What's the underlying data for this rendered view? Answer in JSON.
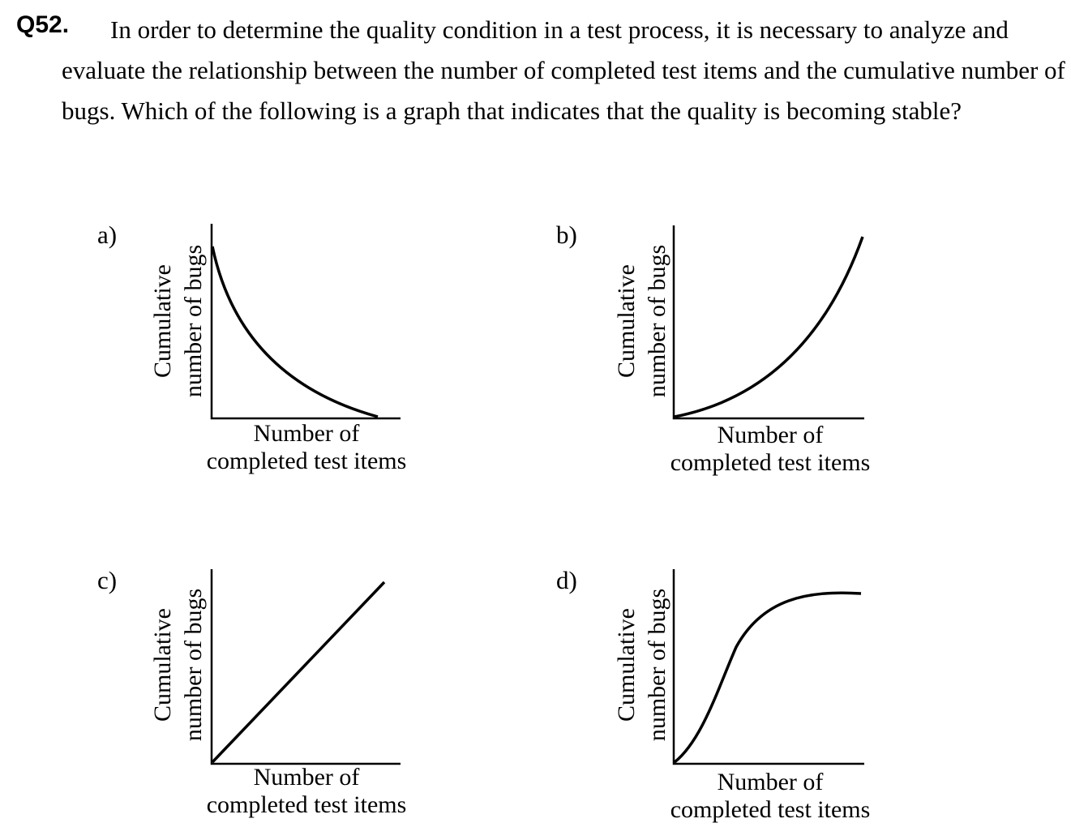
{
  "question": {
    "number": "Q52.",
    "text": "In order to determine the quality condition in a test process, it is necessary to analyze and evaluate the relationship between the number of completed test items and the cumulative number of bugs. Which of the following is a graph that indicates that the quality is becoming stable?"
  },
  "options": [
    {
      "label": "a)",
      "y_label_line1": "Cumulative",
      "y_label_line2": "number of bugs",
      "x_label_line1": "Number of",
      "x_label_line2": "completed test items",
      "curve": "decreasing-concave"
    },
    {
      "label": "b)",
      "y_label_line1": "Cumulative",
      "y_label_line2": "number of bugs",
      "x_label_line1": "Number of",
      "x_label_line2": "completed test items",
      "curve": "increasing-accelerating"
    },
    {
      "label": "c)",
      "y_label_line1": "Cumulative",
      "y_label_line2": "number of bugs",
      "x_label_line1": "Number of",
      "x_label_line2": "completed test items",
      "curve": "linear-increasing"
    },
    {
      "label": "d)",
      "y_label_line1": "Cumulative",
      "y_label_line2": "number of bugs",
      "x_label_line1": "Number of",
      "x_label_line2": "completed test items",
      "curve": "s-curve-saturating"
    }
  ]
}
